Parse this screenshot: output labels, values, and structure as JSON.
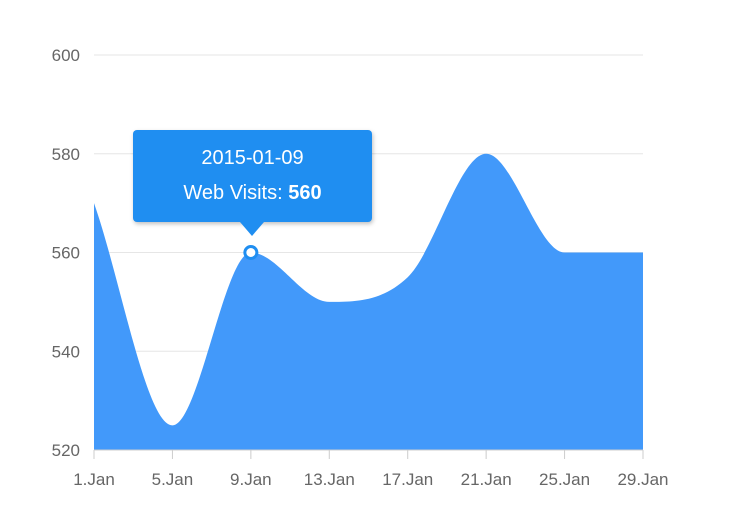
{
  "chart_data": {
    "type": "area",
    "title": "",
    "xlabel": "",
    "ylabel": "",
    "x": [
      "2015-01-01",
      "2015-01-05",
      "2015-01-09",
      "2015-01-13",
      "2015-01-17",
      "2015-01-21",
      "2015-01-25",
      "2015-01-29"
    ],
    "x_tick_labels": [
      "1.Jan",
      "5.Jan",
      "9.Jan",
      "13.Jan",
      "17.Jan",
      "21.Jan",
      "25.Jan",
      "29.Jan"
    ],
    "series": [
      {
        "name": "Web Visits",
        "color": "#4299fa",
        "values": [
          570,
          525,
          560,
          550,
          555,
          580,
          560,
          560
        ]
      }
    ],
    "ylim": [
      520,
      600
    ],
    "y_ticks": [
      520,
      540,
      560,
      580,
      600
    ],
    "grid": true,
    "legend": "none",
    "tooltip": {
      "date": "2015-01-09",
      "series_label": "Web Visits:",
      "value": "560",
      "background_color": "#1f8ef1"
    }
  }
}
